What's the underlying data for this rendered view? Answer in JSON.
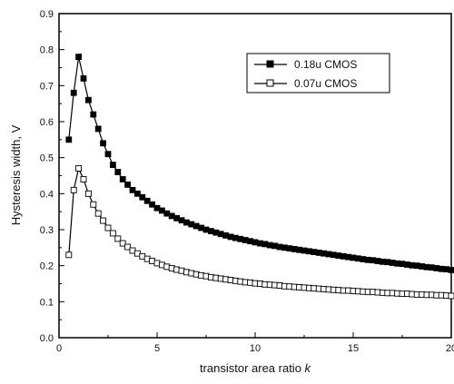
{
  "chart_data": {
    "type": "line",
    "xlabel_prefix": "transistor area ratio ",
    "xlabel_var": "k",
    "ylabel": "Hysteresis width, V",
    "xlim": [
      0,
      20
    ],
    "ylim": [
      0.0,
      0.9
    ],
    "x_ticks": [
      "0",
      "5",
      "10",
      "15",
      "20"
    ],
    "y_ticks": [
      "0.0",
      "0.1",
      "0.2",
      "0.3",
      "0.4",
      "0.5",
      "0.6",
      "0.7",
      "0.8",
      "0.9"
    ],
    "grid": false,
    "legend_position": "top-right",
    "series": [
      {
        "name": "0.18u CMOS",
        "marker": "filled-square",
        "color": "#000000",
        "x": [
          0.5,
          0.75,
          1.0,
          1.25,
          1.5,
          1.75,
          2.0,
          2.25,
          2.5,
          2.75,
          3.0,
          3.25,
          3.5,
          3.75,
          4.0,
          4.25,
          4.5,
          4.75,
          5.0,
          5.25,
          5.5,
          5.75,
          6.0,
          6.25,
          6.5,
          6.75,
          7.0,
          7.25,
          7.5,
          7.75,
          8.0,
          8.25,
          8.5,
          8.75,
          9.0,
          9.25,
          9.5,
          9.75,
          10.0,
          10.25,
          10.5,
          10.75,
          11.0,
          11.25,
          11.5,
          11.75,
          12.0,
          12.25,
          12.5,
          12.75,
          13.0,
          13.25,
          13.5,
          13.75,
          14.0,
          14.25,
          14.5,
          14.75,
          15.0,
          15.25,
          15.5,
          15.75,
          16.0,
          16.25,
          16.5,
          16.75,
          17.0,
          17.25,
          17.5,
          17.75,
          18.0,
          18.25,
          18.5,
          18.75,
          19.0,
          19.25,
          19.5,
          19.75,
          20.0
        ],
        "y": [
          0.55,
          0.68,
          0.78,
          0.72,
          0.66,
          0.62,
          0.58,
          0.54,
          0.51,
          0.48,
          0.46,
          0.44,
          0.425,
          0.41,
          0.4,
          0.39,
          0.38,
          0.37,
          0.36,
          0.353,
          0.345,
          0.338,
          0.332,
          0.326,
          0.32,
          0.315,
          0.31,
          0.305,
          0.3,
          0.296,
          0.292,
          0.288,
          0.284,
          0.28,
          0.277,
          0.274,
          0.271,
          0.268,
          0.265,
          0.262,
          0.26,
          0.257,
          0.255,
          0.252,
          0.25,
          0.248,
          0.246,
          0.244,
          0.242,
          0.24,
          0.238,
          0.236,
          0.234,
          0.232,
          0.23,
          0.228,
          0.226,
          0.224,
          0.222,
          0.22,
          0.218,
          0.216,
          0.215,
          0.213,
          0.211,
          0.21,
          0.208,
          0.206,
          0.205,
          0.203,
          0.201,
          0.2,
          0.198,
          0.196,
          0.195,
          0.193,
          0.191,
          0.19,
          0.188
        ]
      },
      {
        "name": "0.07u CMOS",
        "marker": "open-square",
        "color": "#000000",
        "x": [
          0.5,
          0.75,
          1.0,
          1.25,
          1.5,
          1.75,
          2.0,
          2.25,
          2.5,
          2.75,
          3.0,
          3.25,
          3.5,
          3.75,
          4.0,
          4.25,
          4.5,
          4.75,
          5.0,
          5.25,
          5.5,
          5.75,
          6.0,
          6.25,
          6.5,
          6.75,
          7.0,
          7.25,
          7.5,
          7.75,
          8.0,
          8.25,
          8.5,
          8.75,
          9.0,
          9.25,
          9.5,
          9.75,
          10.0,
          10.25,
          10.5,
          10.75,
          11.0,
          11.25,
          11.5,
          11.75,
          12.0,
          12.25,
          12.5,
          12.75,
          13.0,
          13.25,
          13.5,
          13.75,
          14.0,
          14.25,
          14.5,
          14.75,
          15.0,
          15.25,
          15.5,
          15.75,
          16.0,
          16.25,
          16.5,
          16.75,
          17.0,
          17.25,
          17.5,
          17.75,
          18.0,
          18.25,
          18.5,
          18.75,
          19.0,
          19.25,
          19.5,
          19.75,
          20.0
        ],
        "y": [
          0.23,
          0.41,
          0.47,
          0.44,
          0.4,
          0.37,
          0.345,
          0.325,
          0.305,
          0.29,
          0.275,
          0.262,
          0.252,
          0.242,
          0.234,
          0.226,
          0.219,
          0.213,
          0.207,
          0.202,
          0.197,
          0.193,
          0.189,
          0.186,
          0.182,
          0.179,
          0.176,
          0.173,
          0.171,
          0.168,
          0.166,
          0.164,
          0.162,
          0.16,
          0.158,
          0.156,
          0.154,
          0.153,
          0.151,
          0.15,
          0.148,
          0.147,
          0.146,
          0.145,
          0.143,
          0.142,
          0.141,
          0.14,
          0.139,
          0.138,
          0.137,
          0.136,
          0.135,
          0.134,
          0.133,
          0.132,
          0.131,
          0.131,
          0.13,
          0.129,
          0.128,
          0.127,
          0.127,
          0.126,
          0.125,
          0.124,
          0.124,
          0.123,
          0.122,
          0.122,
          0.121,
          0.12,
          0.12,
          0.119,
          0.119,
          0.118,
          0.118,
          0.117,
          0.116
        ]
      }
    ]
  }
}
